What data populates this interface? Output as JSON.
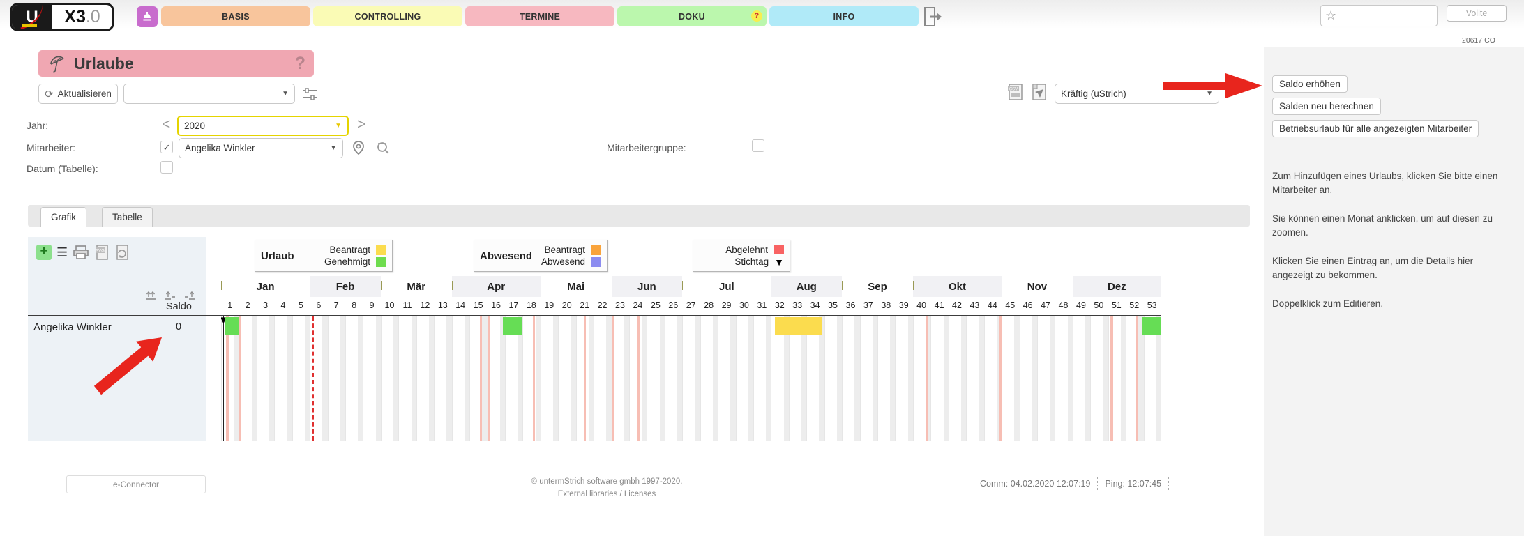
{
  "topbar": {
    "logo_u": "U",
    "logo_version_bold": "X3",
    "logo_version_dim": ".0",
    "tabs": [
      {
        "label": "BASIS",
        "color": "#f8c59c"
      },
      {
        "label": "CONTROLLING",
        "color": "#fafbb5"
      },
      {
        "label": "TERMINE",
        "color": "#f7b8c0"
      },
      {
        "label": "DOKU",
        "color": "#bbf7ad",
        "badge": "?"
      },
      {
        "label": "INFO",
        "color": "#b0eaf8"
      }
    ],
    "favorites_value": "",
    "vollte_label": "Vollte",
    "session_code": "20617 CO"
  },
  "title": {
    "text": "Urlaube",
    "help_icon": "?"
  },
  "toolbar": {
    "refresh_label": "Aktualisieren",
    "quick_filter_value": "",
    "style_value": "Kräftig (uStrich)"
  },
  "filters": {
    "jahr_label": "Jahr:",
    "jahr_value": "2020",
    "prev_icon": "<",
    "next_icon": ">",
    "mitarbeiter_label": "Mitarbeiter:",
    "mitarbeiter_checked": "✓",
    "mitarbeiter_value": "Angelika Winkler",
    "mitarbeitergruppe_label": "Mitarbeitergruppe:",
    "datum_label": "Datum (Tabelle):"
  },
  "view_tabs": [
    {
      "label": "Grafik",
      "active": true
    },
    {
      "label": "Tabelle",
      "active": false
    }
  ],
  "legend": [
    {
      "title": "Urlaub",
      "items": [
        {
          "label": "Beantragt",
          "color": "#fbdc4e"
        },
        {
          "label": "Genehmigt",
          "color": "#6edc4e"
        }
      ]
    },
    {
      "title": "Abwesend",
      "items": [
        {
          "label": "Beantragt",
          "color": "#f9a33b"
        },
        {
          "label": "Abwesend",
          "color": "#8c8cf0"
        }
      ]
    },
    {
      "title": "",
      "items": [
        {
          "label": "Abgelehnt",
          "color": "#f86262"
        },
        {
          "label": "Stichtag",
          "marker": "▼"
        }
      ]
    }
  ],
  "chart_data": {
    "type": "gantt-calendar",
    "year": 2020,
    "saldo_header": "Saldo",
    "rows": [
      {
        "name": "Angelika Winkler",
        "saldo": "0"
      }
    ],
    "months": [
      {
        "label": "Jan",
        "weeks": 5,
        "shaded": false
      },
      {
        "label": "Feb",
        "weeks": 4,
        "shaded": true
      },
      {
        "label": "Mär",
        "weeks": 4,
        "shaded": false
      },
      {
        "label": "Apr",
        "weeks": 5,
        "shaded": true
      },
      {
        "label": "Mai",
        "weeks": 4,
        "shaded": false
      },
      {
        "label": "Jun",
        "weeks": 4,
        "shaded": true
      },
      {
        "label": "Jul",
        "weeks": 5,
        "shaded": false
      },
      {
        "label": "Aug",
        "weeks": 4,
        "shaded": true
      },
      {
        "label": "Sep",
        "weeks": 4,
        "shaded": false
      },
      {
        "label": "Okt",
        "weeks": 5,
        "shaded": true
      },
      {
        "label": "Nov",
        "weeks": 4,
        "shaded": false
      },
      {
        "label": "Dez",
        "weeks": 5,
        "shaded": true
      }
    ],
    "week_count": 53,
    "entries": [
      {
        "row": 0,
        "start_week": 0.25,
        "end_week": 1.0,
        "status": "Urlaub Genehmigt",
        "color": "#66dd55"
      },
      {
        "row": 0,
        "start_week": 15.9,
        "end_week": 17.0,
        "status": "Urlaub Genehmigt",
        "color": "#66dd55"
      },
      {
        "row": 0,
        "start_week": 31.2,
        "end_week": 33.9,
        "status": "Urlaub Beantragt",
        "color": "#fbdc4e"
      },
      {
        "row": 0,
        "start_week": 51.9,
        "end_week": 53.0,
        "status": "Urlaub Genehmigt",
        "color": "#66dd55"
      }
    ],
    "stichtag_week": 0.0,
    "stichtag_marker": "▼",
    "today_week": 5.15,
    "holiday_weeks": [
      0.29,
      1.0,
      14.57,
      15.0,
      17.57,
      20.43,
      22.0,
      23.43,
      39.71,
      43.86,
      50.14,
      51.57
    ],
    "holiday_color": "#f7beb4",
    "weekend_color": "#ededed",
    "today_color": "#e03030"
  },
  "sidebar": {
    "buttons": [
      "Saldo erhöhen",
      "Salden neu berechnen",
      "Betriebsurlaub für alle angezeigten Mitarbeiter"
    ],
    "paragraphs": [
      "Zum Hinzufügen eines Urlaubs, klicken Sie bitte einen Mitarbeiter an.",
      "Sie können einen Monat anklicken, um auf diesen zu zoomen.",
      "Klicken Sie einen Eintrag an, um die Details hier angezeigt zu bekommen.",
      "Doppelklick zum Editieren."
    ]
  },
  "footer": {
    "econnector_label": "e-Connector",
    "copyright": "© untermStrich software gmbh 1997-2020.",
    "licenses": "External libraries / Licenses",
    "comm": "Comm: 04.02.2020 12:07:19",
    "ping": "Ping: 12:07:45"
  },
  "annotation_color": "#e8251d"
}
